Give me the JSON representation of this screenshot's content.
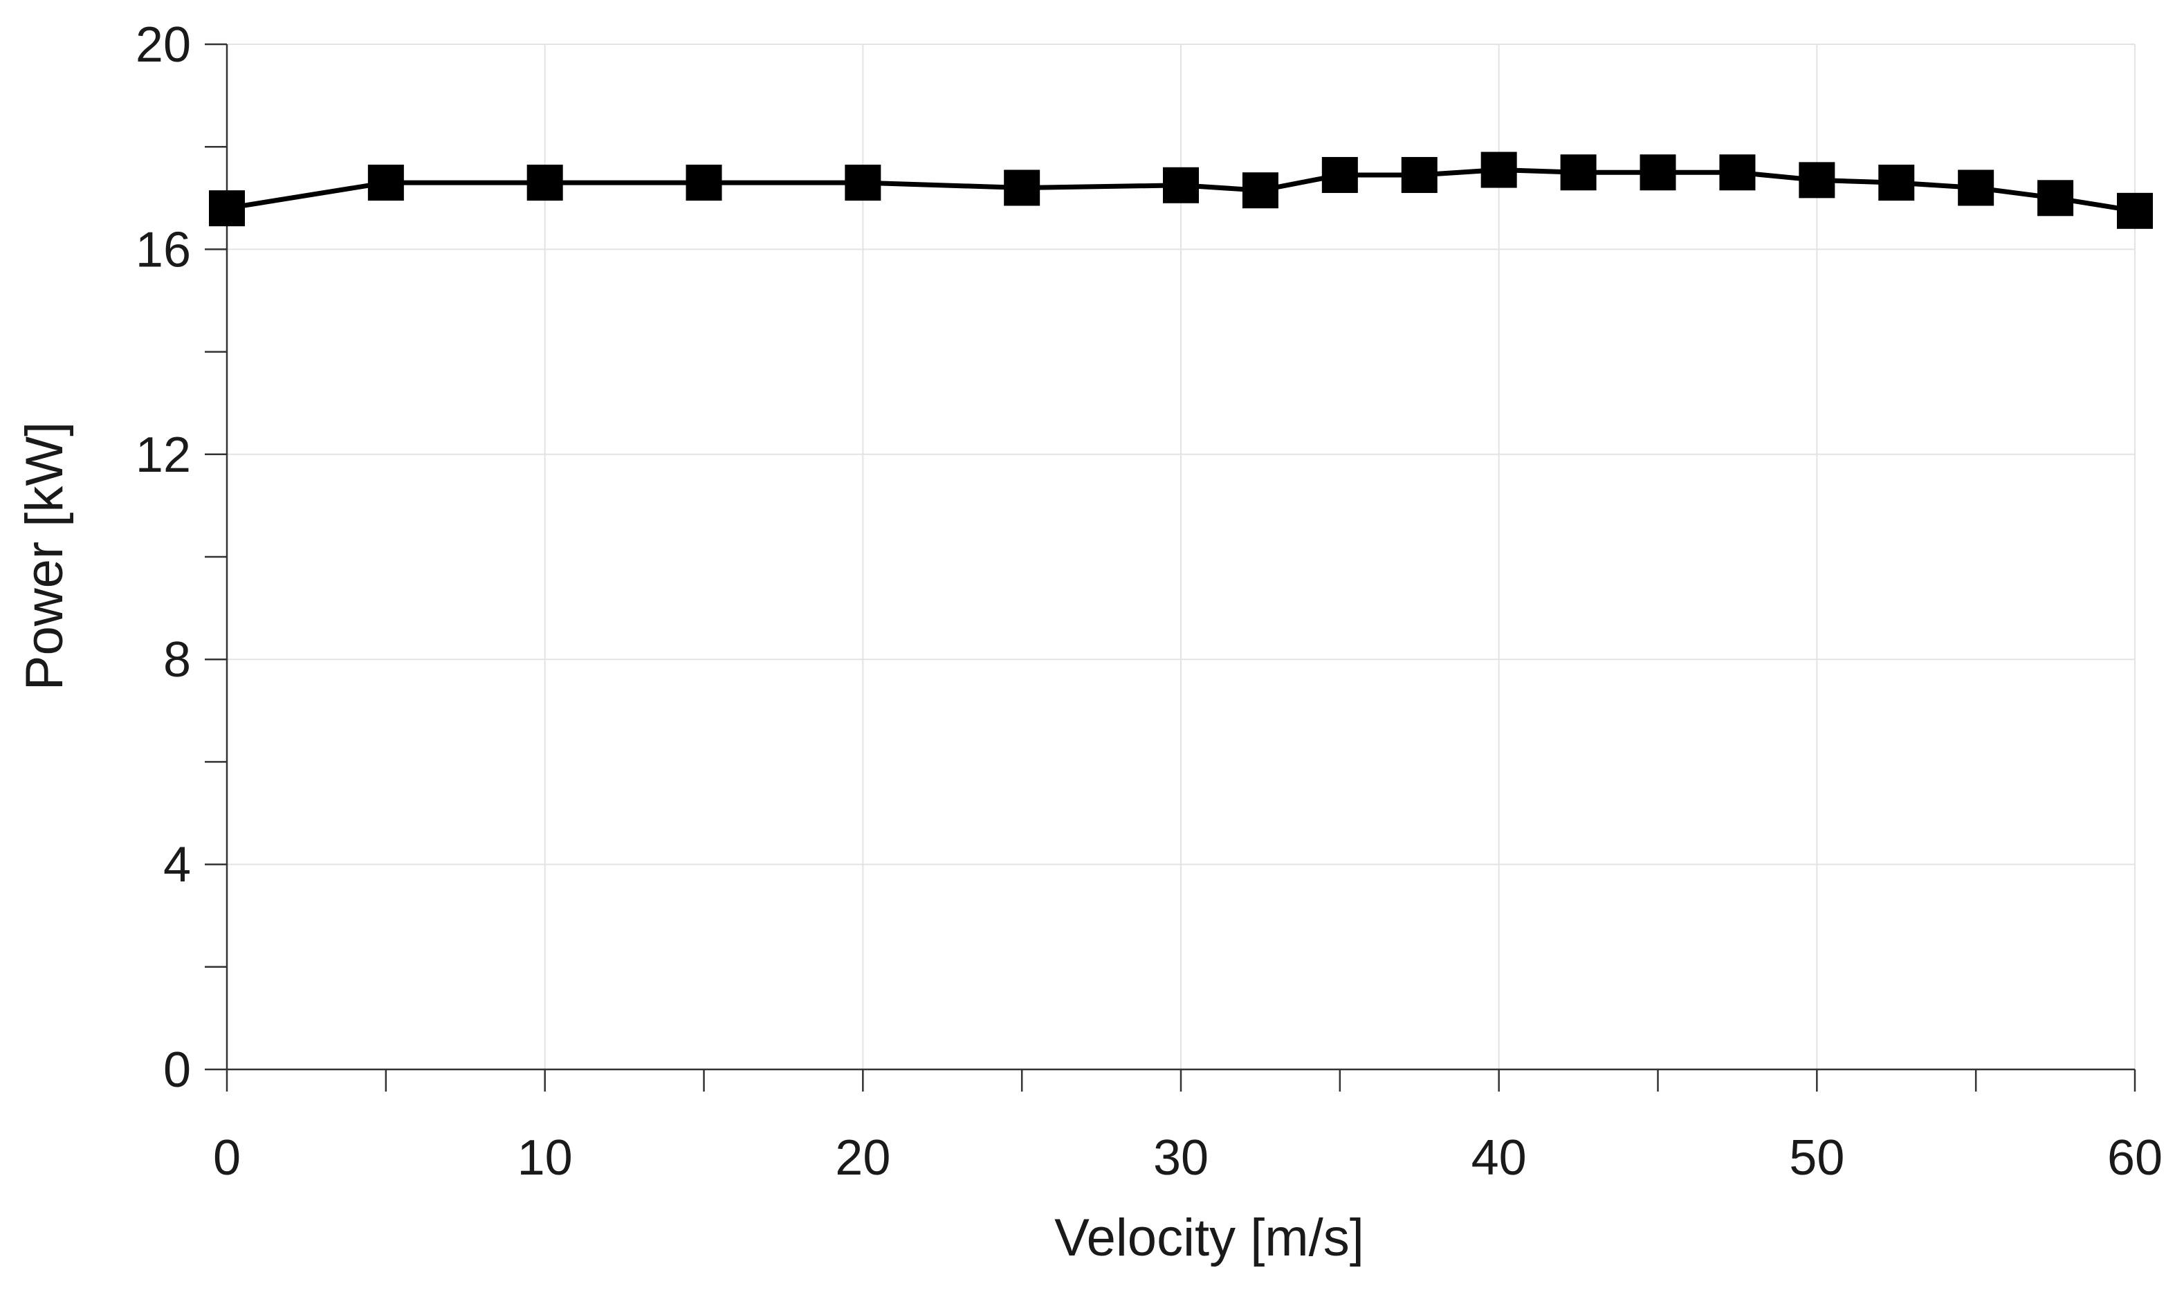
{
  "chart_data": {
    "type": "line",
    "title": "",
    "xlabel": "Velocity [m/s]",
    "ylabel": "Power [kW]",
    "xlim": [
      0,
      60
    ],
    "ylim": [
      0,
      20
    ],
    "x_ticks": [
      0,
      10,
      20,
      30,
      40,
      50,
      60
    ],
    "x_minor_ticks": [
      5,
      15,
      25,
      35,
      45,
      55
    ],
    "y_ticks": [
      0,
      4,
      8,
      12,
      16,
      20
    ],
    "y_minor_ticks": [
      2,
      6,
      10,
      14,
      18
    ],
    "grid": true,
    "legend": "none",
    "series": [
      {
        "name": "Power",
        "marker": "square",
        "color": "#000000",
        "x": [
          0,
          5,
          10,
          15,
          20,
          25,
          30,
          32.5,
          35,
          37.5,
          40,
          42.5,
          45,
          47.5,
          50,
          52.5,
          55,
          57.5,
          60
        ],
        "values": [
          16.8,
          17.3,
          17.3,
          17.3,
          17.3,
          17.2,
          17.25,
          17.15,
          17.45,
          17.45,
          17.55,
          17.5,
          17.5,
          17.5,
          17.35,
          17.3,
          17.2,
          17.0,
          16.75
        ]
      }
    ]
  }
}
